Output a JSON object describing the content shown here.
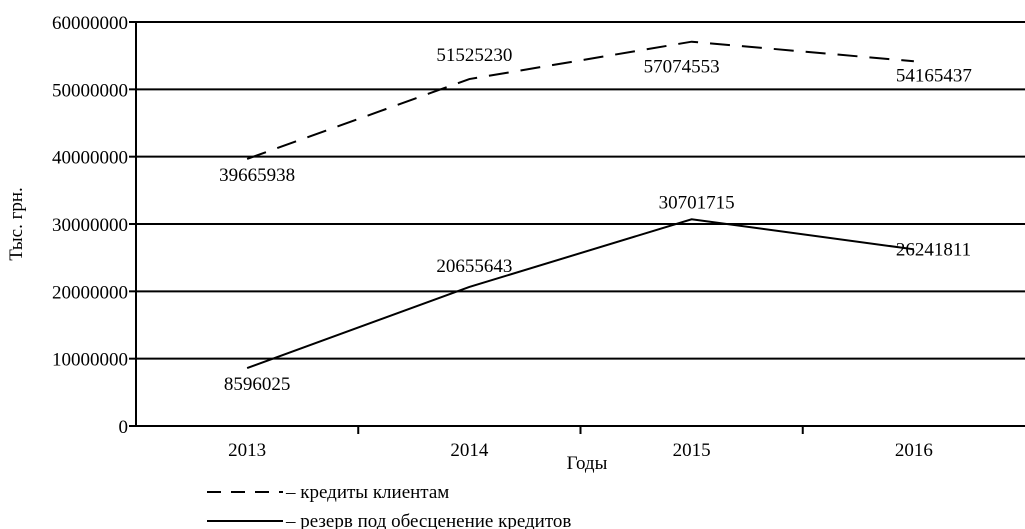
{
  "chart_data": {
    "type": "line",
    "title": "",
    "xlabel": "Годы",
    "ylabel": "Тыс. грн.",
    "categories": [
      "2013",
      "2014",
      "2015",
      "2016"
    ],
    "ylim": [
      0,
      60000000
    ],
    "yticks": [
      0,
      10000000,
      20000000,
      30000000,
      40000000,
      50000000,
      60000000
    ],
    "ytick_labels": [
      "0",
      "10000000",
      "20000000",
      "30000000",
      "40000000",
      "50000000",
      "60000000"
    ],
    "grid": "horizontal",
    "legend_position": "bottom",
    "series": [
      {
        "name": "кредиты клиентам",
        "legend_label": "– кредиты клиентам",
        "style": "dashed",
        "color": "#000000",
        "values": [
          39665938,
          51525230,
          57074553,
          54165437
        ],
        "value_labels": [
          "39665938",
          "51525230",
          "57074553",
          "54165437"
        ]
      },
      {
        "name": "резерв под обесценение кредитов",
        "legend_label": "– резерв под обесценение кредитов",
        "style": "solid",
        "color": "#000000",
        "values": [
          8596025,
          20655643,
          30701715,
          26241811
        ],
        "value_labels": [
          "8596025",
          "20655643",
          "30701715",
          "26241811"
        ]
      }
    ]
  }
}
